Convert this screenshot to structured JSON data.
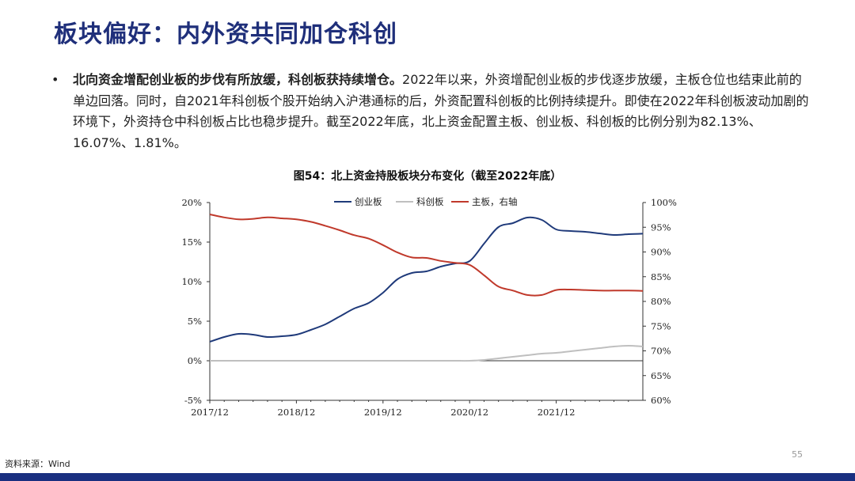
{
  "page": {
    "title": "板块偏好：内外资共同加仓科创",
    "bullet": {
      "bold_lead": "北向资金增配创业板的步伐有所放缓，科创板获持续增仓。",
      "body": "2022年以来，外资增配创业板的步伐逐步放缓，主板仓位也结束此前的单边回落。同时，自2021年科创板个股开始纳入沪港通标的后，外资配置科创板的比例持续提升。即使在2022年科创板波动加剧的环境下，外资持仓中科创板占比也稳步提升。截至2022年底，北上资金配置主板、创业板、科创板的比例分别为82.13%、16.07%、1.81%。"
    },
    "source": "资料来源：Wind",
    "page_number": "55"
  },
  "colors": {
    "title": "#1f2f7a",
    "chuangye": "#1f3a7a",
    "kechuang": "#bfbfbf",
    "zhuban": "#c0392b",
    "bottom_bar": "#1a2f80"
  },
  "chart_data": {
    "type": "line",
    "title": "图54：北上资金持股板块分布变化（截至2022年底）",
    "x_tick_labels": [
      "2017/12",
      "2018/12",
      "2019/12",
      "2020/12",
      "2021/12"
    ],
    "left_axis": {
      "ylim": [
        -5,
        20
      ],
      "tick_labels": [
        "20%",
        "15%",
        "10%",
        "5%",
        "0%",
        "-5%"
      ]
    },
    "right_axis": {
      "ylim": [
        60,
        100
      ],
      "tick_labels": [
        "100%",
        "95%",
        "90%",
        "85%",
        "80%",
        "75%",
        "70%",
        "65%",
        "60%"
      ]
    },
    "legend": [
      "创业板",
      "科创板",
      "主板，右轴"
    ],
    "legend_position": "top-center",
    "x": [
      "2017/12",
      "2018/02",
      "2018/04",
      "2018/06",
      "2018/08",
      "2018/10",
      "2018/12",
      "2019/02",
      "2019/04",
      "2019/06",
      "2019/08",
      "2019/10",
      "2019/12",
      "2020/02",
      "2020/04",
      "2020/06",
      "2020/08",
      "2020/10",
      "2020/12",
      "2021/02",
      "2021/04",
      "2021/06",
      "2021/08",
      "2021/10",
      "2021/12",
      "2022/02",
      "2022/04",
      "2022/06",
      "2022/08",
      "2022/10",
      "2022/12"
    ],
    "series": [
      {
        "name": "创业板",
        "axis": "left",
        "values": [
          2.4,
          3.0,
          3.4,
          3.3,
          3.0,
          3.1,
          3.3,
          3.9,
          4.6,
          5.6,
          6.6,
          7.3,
          8.6,
          10.3,
          11.1,
          11.3,
          11.9,
          12.3,
          12.6,
          14.8,
          16.9,
          17.4,
          18.1,
          17.8,
          16.6,
          16.4,
          16.3,
          16.1,
          15.9,
          16.0,
          16.07
        ]
      },
      {
        "name": "科创板",
        "axis": "left",
        "values": [
          0,
          0,
          0,
          0,
          0,
          0,
          0,
          0,
          0,
          0,
          0,
          0,
          0,
          0,
          0,
          0,
          0,
          0,
          0,
          0.1,
          0.3,
          0.5,
          0.7,
          0.9,
          1.0,
          1.2,
          1.4,
          1.6,
          1.8,
          1.9,
          1.81
        ]
      },
      {
        "name": "主板，右轴",
        "axis": "right",
        "values": [
          97.6,
          97.0,
          96.6,
          96.7,
          97.0,
          96.8,
          96.6,
          96.1,
          95.3,
          94.4,
          93.4,
          92.7,
          91.4,
          89.9,
          88.9,
          88.8,
          88.2,
          87.8,
          87.4,
          85.3,
          83.0,
          82.2,
          81.3,
          81.3,
          82.3,
          82.4,
          82.3,
          82.2,
          82.2,
          82.2,
          82.13
        ]
      }
    ],
    "grid": false
  }
}
